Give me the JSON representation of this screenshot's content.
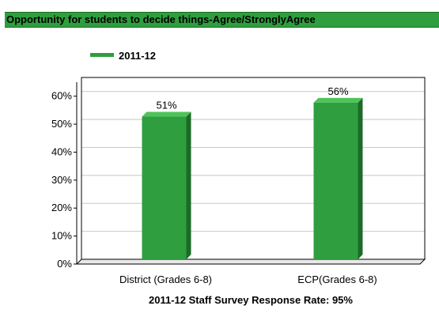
{
  "header": {
    "title": "Opportunity for students to decide things-Agree/StronglyAgree"
  },
  "colors": {
    "bar": "#2f9e3e",
    "bar_dark": "#1b6b27",
    "bar_top": "#4fc35a",
    "grid": "#c8c8c8"
  },
  "chart_data": {
    "type": "bar",
    "categories": [
      "District (Grades 6-8)",
      "ECP(Grades 6-8)"
    ],
    "series": [
      {
        "name": "2011-12",
        "values": [
          51,
          56
        ]
      }
    ],
    "data_labels": [
      "51%",
      "56%"
    ],
    "y_ticks": [
      "0%",
      "10%",
      "20%",
      "30%",
      "40%",
      "50%",
      "60%"
    ],
    "ylim": [
      0,
      65
    ],
    "grid": true,
    "legend_position": "top-left",
    "xlabel": "2011-12 Staff Survey Response Rate: 95%"
  }
}
